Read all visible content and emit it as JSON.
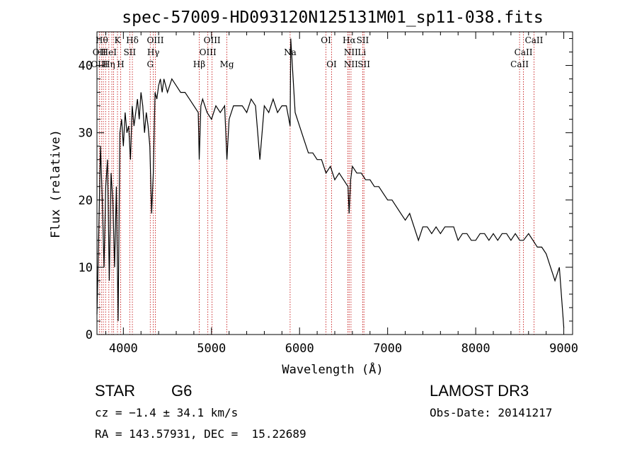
{
  "chart_data": {
    "type": "line",
    "title": "spec-57009-HD093120N125131M01_sp11-038.fits",
    "xlabel": "Wavelength (Å)",
    "ylabel": "Flux (relative)",
    "xlim": [
      3700,
      9100
    ],
    "ylim": [
      0,
      45
    ],
    "xticks": [
      4000,
      5000,
      6000,
      7000,
      8000,
      9000
    ],
    "yticks": [
      0,
      10,
      20,
      30,
      40
    ],
    "grid": false,
    "series": [
      {
        "color": "#000000",
        "x": [
          3700,
          3720,
          3740,
          3760,
          3780,
          3800,
          3820,
          3840,
          3860,
          3880,
          3900,
          3920,
          3940,
          3960,
          3980,
          4000,
          4020,
          4040,
          4060,
          4080,
          4100,
          4120,
          4140,
          4160,
          4180,
          4200,
          4220,
          4240,
          4260,
          4280,
          4300,
          4320,
          4340,
          4360,
          4380,
          4400,
          4420,
          4440,
          4460,
          4480,
          4500,
          4550,
          4600,
          4650,
          4700,
          4750,
          4800,
          4850,
          4861,
          4880,
          4900,
          4950,
          5000,
          5050,
          5100,
          5150,
          5175,
          5200,
          5250,
          5300,
          5350,
          5400,
          5450,
          5500,
          5550,
          5600,
          5650,
          5700,
          5750,
          5800,
          5850,
          5893,
          5900,
          5950,
          6000,
          6050,
          6100,
          6150,
          6200,
          6250,
          6300,
          6350,
          6400,
          6450,
          6500,
          6550,
          6563,
          6580,
          6600,
          6650,
          6700,
          6750,
          6800,
          6850,
          6900,
          6950,
          7000,
          7050,
          7100,
          7150,
          7200,
          7250,
          7300,
          7350,
          7400,
          7450,
          7500,
          7550,
          7600,
          7650,
          7700,
          7750,
          7800,
          7850,
          7900,
          7950,
          8000,
          8050,
          8100,
          8150,
          8200,
          8250,
          8300,
          8350,
          8400,
          8450,
          8500,
          8542,
          8600,
          8650,
          8700,
          8750,
          8800,
          8850,
          8900,
          8950,
          9000
        ],
        "y": [
          3,
          15,
          28,
          20,
          10,
          22,
          26,
          8,
          24,
          20,
          10,
          22,
          2,
          30,
          32,
          28,
          33,
          30,
          31,
          26,
          34,
          31,
          33,
          35,
          32,
          36,
          34,
          30,
          33,
          31,
          28,
          18,
          24,
          36,
          35,
          37,
          38,
          36,
          38,
          37,
          36,
          38,
          37,
          36,
          36,
          35,
          34,
          33,
          26,
          34,
          35,
          33,
          32,
          34,
          33,
          34,
          26,
          32,
          34,
          34,
          34,
          33,
          35,
          34,
          26,
          34,
          33,
          35,
          33,
          34,
          34,
          31,
          44,
          33,
          31,
          29,
          27,
          27,
          26,
          26,
          24,
          25,
          23,
          24,
          23,
          22,
          18,
          23,
          25,
          24,
          24,
          23,
          23,
          22,
          22,
          21,
          20,
          20,
          19,
          18,
          17,
          18,
          16,
          14,
          16,
          16,
          15,
          16,
          15,
          16,
          16,
          16,
          14,
          15,
          15,
          14,
          14,
          15,
          15,
          14,
          15,
          14,
          15,
          15,
          14,
          15,
          14,
          14,
          15,
          14,
          13,
          13,
          12,
          10,
          8,
          10,
          1
        ]
      }
    ],
    "lines_red": [
      3727,
      3750,
      3772,
      3798,
      3835,
      3869,
      3889,
      3933,
      3969,
      4072,
      4102,
      4305,
      4340,
      4363,
      4861,
      4959,
      5007,
      5175,
      5893,
      6300,
      6364,
      6548,
      6563,
      6584,
      6717,
      6731,
      8498,
      8542,
      8662
    ],
    "line_labels": [
      {
        "text": "Hθ",
        "x": 3755,
        "row": 0
      },
      {
        "text": "K",
        "x": 3933,
        "row": 0
      },
      {
        "text": "Hδ",
        "x": 4102,
        "row": 0
      },
      {
        "text": "OIII",
        "x": 4363,
        "row": 0
      },
      {
        "text": "OIII",
        "x": 5007,
        "row": 0
      },
      {
        "text": "OI",
        "x": 6300,
        "row": 0
      },
      {
        "text": "Hα",
        "x": 6563,
        "row": 0
      },
      {
        "text": "SII",
        "x": 6717,
        "row": 0
      },
      {
        "text": "CaII",
        "x": 8662,
        "row": 0
      },
      {
        "text": "OII",
        "x": 3727,
        "row": 1
      },
      {
        "text": "HeI",
        "x": 3835,
        "row": 1
      },
      {
        "text": "SII",
        "x": 4072,
        "row": 1
      },
      {
        "text": "Hγ",
        "x": 4340,
        "row": 1
      },
      {
        "text": "OIII",
        "x": 4959,
        "row": 1
      },
      {
        "text": "Na",
        "x": 5893,
        "row": 1
      },
      {
        "text": "NII",
        "x": 6584,
        "row": 1
      },
      {
        "text": "Li",
        "x": 6708,
        "row": 1
      },
      {
        "text": "CaII",
        "x": 8542,
        "row": 1
      },
      {
        "text": "OIII",
        "x": 3727,
        "row": 2
      },
      {
        "text": "Hη",
        "x": 3835,
        "row": 2
      },
      {
        "text": "H",
        "x": 3969,
        "row": 2
      },
      {
        "text": "G",
        "x": 4305,
        "row": 2
      },
      {
        "text": "Hβ",
        "x": 4861,
        "row": 2
      },
      {
        "text": "Mg",
        "x": 5175,
        "row": 2
      },
      {
        "text": "OI",
        "x": 6364,
        "row": 2
      },
      {
        "text": "NII",
        "x": 6584,
        "row": 2
      },
      {
        "text": "SII",
        "x": 6731,
        "row": 2
      },
      {
        "text": "CaII",
        "x": 8498,
        "row": 2
      }
    ]
  },
  "info": {
    "class": "STAR",
    "subclass": "G6",
    "survey": "LAMOST DR3",
    "cz": "cz = −1.4 ± 34.1 km/s",
    "obs_date": "Obs-Date: 20141217",
    "coords": "RA = 143.57931, DEC =  15.22689"
  }
}
